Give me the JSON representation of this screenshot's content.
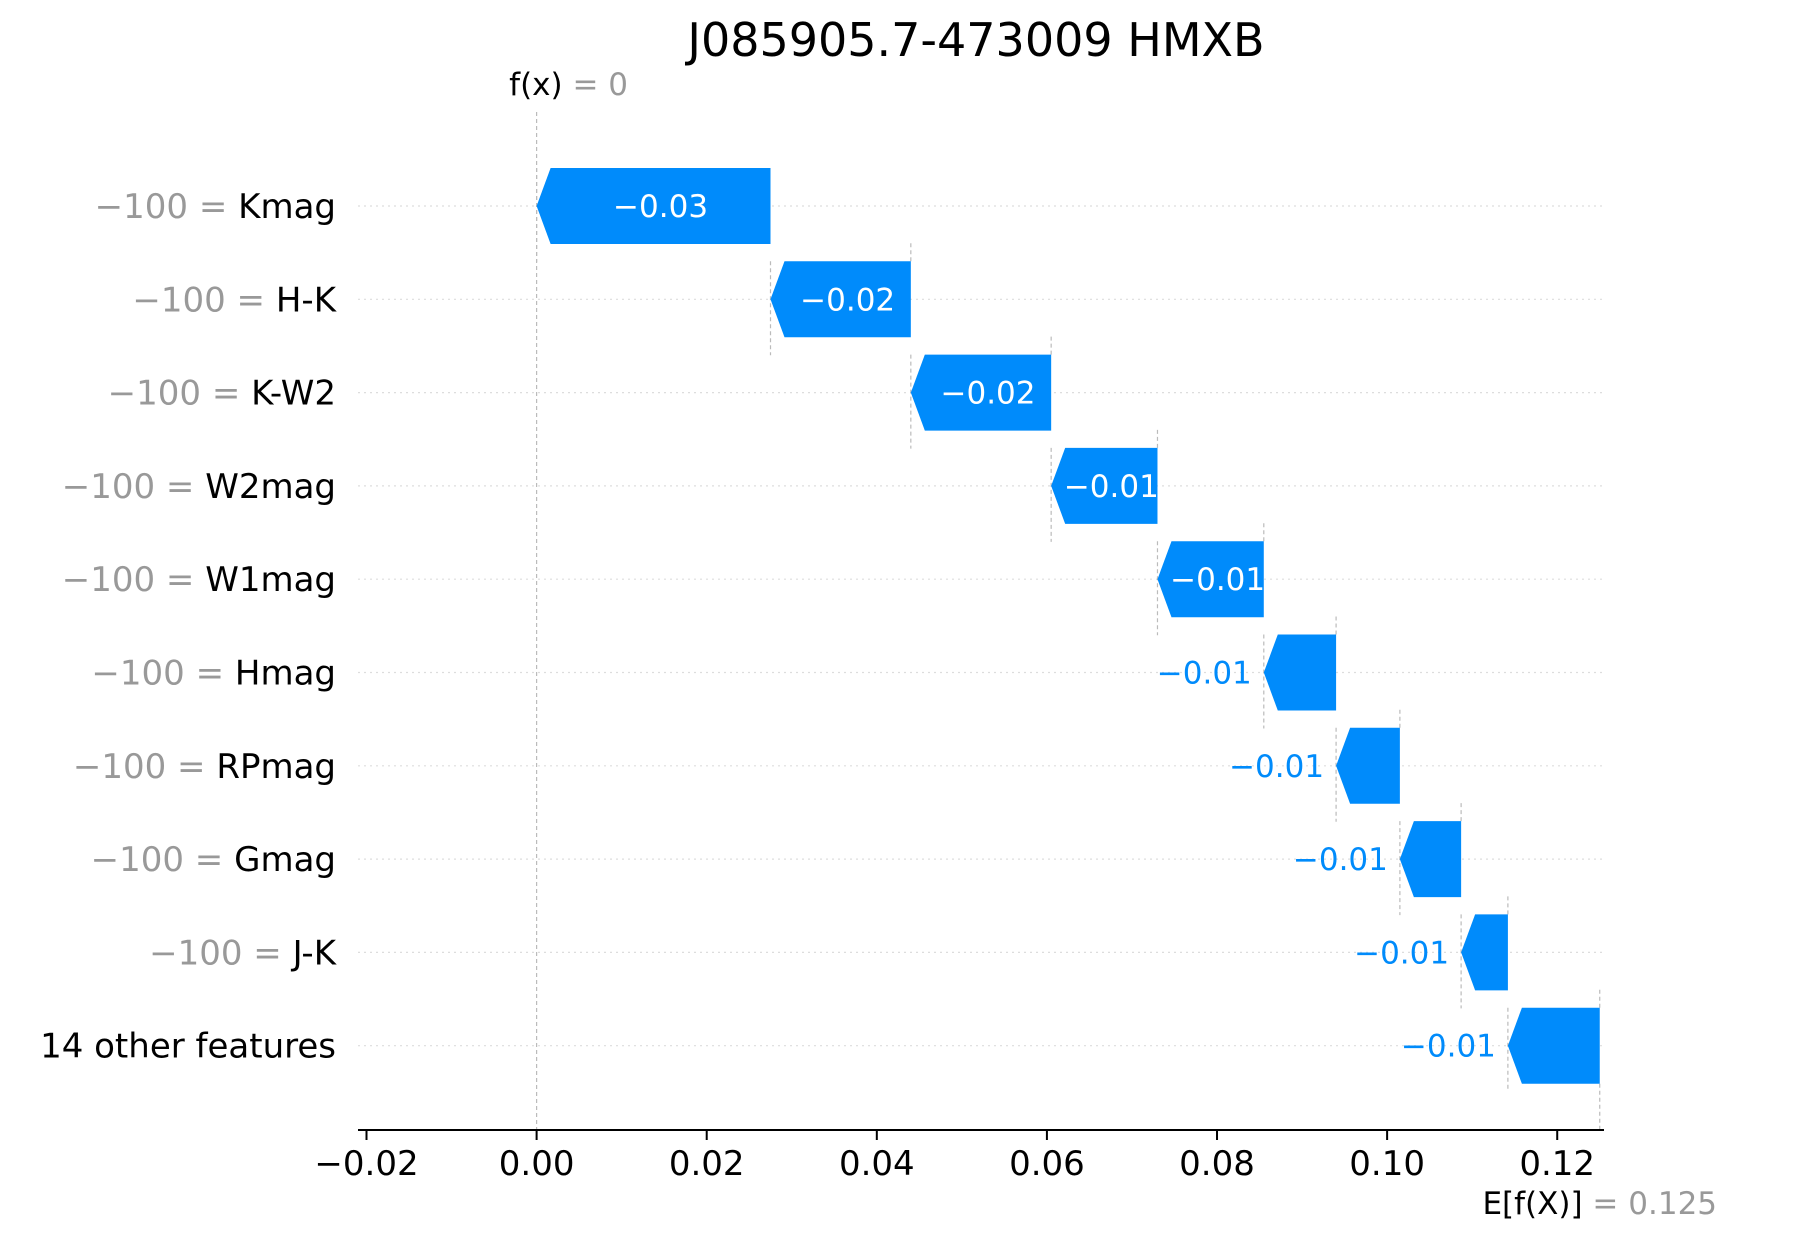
{
  "chart_data": {
    "type": "waterfall",
    "title": "J085905.7-473009 HMXB",
    "fx_label": "f(x)",
    "fx_value": "0",
    "ex_label": "E[f(X)]",
    "ex_value": "0.125",
    "base_value": 0.125,
    "xlim": [
      -0.021,
      0.1255
    ],
    "xticks": [
      -0.02,
      0.0,
      0.02,
      0.04,
      0.06,
      0.08,
      0.1,
      0.12
    ],
    "xtick_labels": [
      "−0.02",
      "0.00",
      "0.02",
      "0.04",
      "0.06",
      "0.08",
      "0.10",
      "0.12"
    ],
    "features": [
      {
        "value": "−100",
        "name": "Kmag",
        "start": 0.0275,
        "end": 0.0,
        "label": "−0.03"
      },
      {
        "value": "−100",
        "name": "H-K",
        "start": 0.044,
        "end": 0.0275,
        "label": "−0.02"
      },
      {
        "value": "−100",
        "name": "K-W2",
        "start": 0.0605,
        "end": 0.044,
        "label": "−0.02"
      },
      {
        "value": "−100",
        "name": "W2mag",
        "start": 0.073,
        "end": 0.0605,
        "label": "−0.01"
      },
      {
        "value": "−100",
        "name": "W1mag",
        "start": 0.0855,
        "end": 0.073,
        "label": "−0.01"
      },
      {
        "value": "−100",
        "name": "Hmag",
        "start": 0.094,
        "end": 0.0855,
        "label": "−0.01"
      },
      {
        "value": "−100",
        "name": "RPmag",
        "start": 0.1015,
        "end": 0.094,
        "label": "−0.01"
      },
      {
        "value": "−100",
        "name": "Gmag",
        "start": 0.1087,
        "end": 0.1015,
        "label": "−0.01"
      },
      {
        "value": "−100",
        "name": "J-K",
        "start": 0.1142,
        "end": 0.1087,
        "label": "−0.01"
      },
      {
        "value": "",
        "name": "14 other features",
        "start": 0.125,
        "end": 0.1142,
        "label": "−0.01"
      }
    ],
    "bar_color": "#008bfb",
    "label_color": "#008bfb",
    "value_color": "#999999"
  }
}
